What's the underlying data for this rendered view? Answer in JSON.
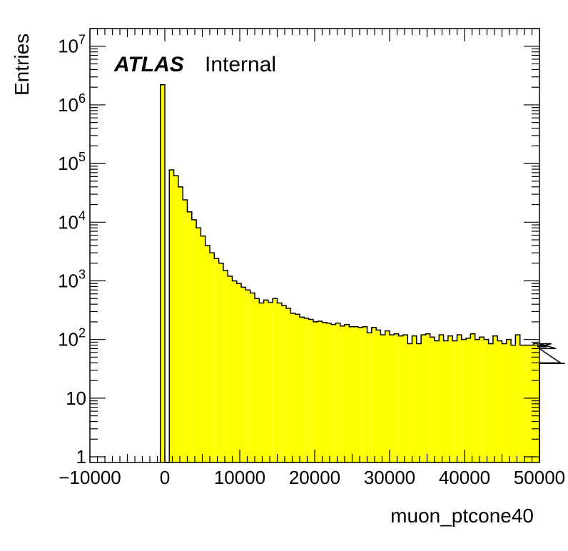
{
  "chart_data": {
    "type": "bar",
    "xlabel": "muon_ptcone40",
    "ylabel": "Entries",
    "label_bold": "ATLAS",
    "label_rest": "Internal",
    "xlim": [
      -10000,
      50000
    ],
    "ylim": [
      0.8,
      20000000
    ],
    "y_log": true,
    "grid": false,
    "bar_color": "#ffff00",
    "line_color": "#000000",
    "xticks": [
      {
        "value": -10000,
        "label": "−10000"
      },
      {
        "value": 0,
        "label": "0"
      },
      {
        "value": 10000,
        "label": "10000"
      },
      {
        "value": 20000,
        "label": "20000"
      },
      {
        "value": 30000,
        "label": "30000"
      },
      {
        "value": 40000,
        "label": "40000"
      },
      {
        "value": 50000,
        "label": "50000"
      }
    ],
    "yticks": [
      {
        "value": 1,
        "base": "1",
        "exp": ""
      },
      {
        "value": 10,
        "base": "10",
        "exp": ""
      },
      {
        "value": 100,
        "base": "10",
        "exp": "2"
      },
      {
        "value": 1000,
        "base": "10",
        "exp": "3"
      },
      {
        "value": 10000,
        "base": "10",
        "exp": "4"
      },
      {
        "value": 100000,
        "base": "10",
        "exp": "5"
      },
      {
        "value": 1000000,
        "base": "10",
        "exp": "6"
      },
      {
        "value": 10000000,
        "base": "10",
        "exp": "7"
      }
    ],
    "bins": {
      "start": -600,
      "width": 600,
      "values": [
        2200000,
        0,
        78000,
        62000,
        40000,
        24000,
        15000,
        11000,
        8000,
        5800,
        4000,
        3000,
        2400,
        2000,
        1500,
        1200,
        1000,
        900,
        780,
        700,
        620,
        500,
        420,
        470,
        430,
        500,
        420,
        380,
        340,
        280,
        270,
        240,
        230,
        220,
        200,
        205,
        195,
        190,
        180,
        190,
        170,
        180,
        165,
        165,
        160,
        165,
        130,
        160,
        145,
        120,
        140,
        120,
        125,
        115,
        120,
        85,
        115,
        85,
        120,
        125,
        110,
        95,
        120,
        95,
        115,
        95,
        120,
        100,
        105,
        125,
        100,
        110,
        100,
        85,
        115,
        95,
        85,
        100,
        80,
        120,
        80,
        80,
        80,
        85,
        75,
        80,
        75,
        85,
        70,
        40,
        39
      ]
    }
  }
}
